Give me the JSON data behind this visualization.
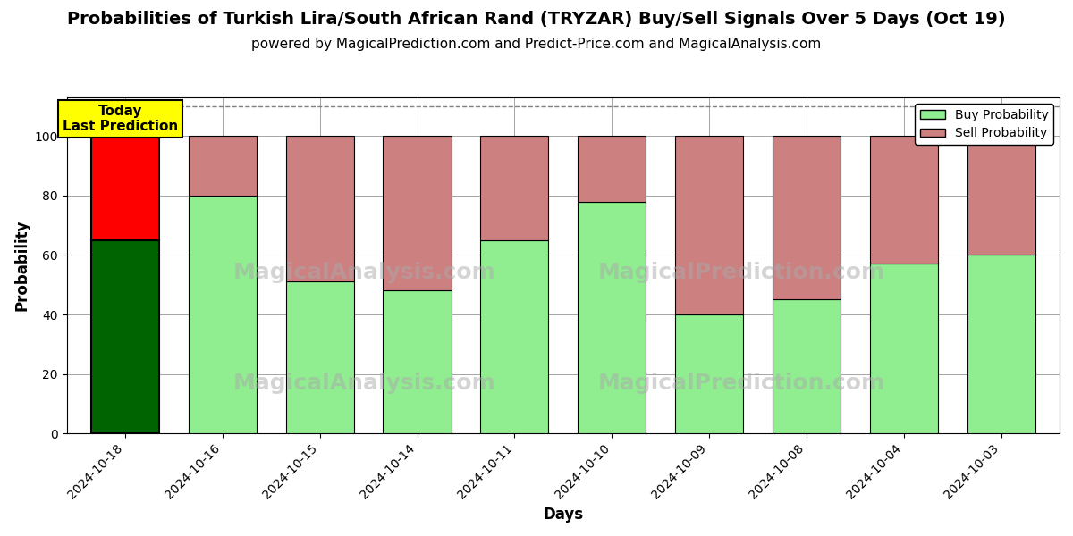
{
  "title": "Probabilities of Turkish Lira/South African Rand (TRYZAR) Buy/Sell Signals Over 5 Days (Oct 19)",
  "subtitle": "powered by MagicalPrediction.com and Predict-Price.com and MagicalAnalysis.com",
  "xlabel": "Days",
  "ylabel": "Probability",
  "categories": [
    "2024-10-18",
    "2024-10-16",
    "2024-10-15",
    "2024-10-14",
    "2024-10-11",
    "2024-10-10",
    "2024-10-09",
    "2024-10-08",
    "2024-10-04",
    "2024-10-03"
  ],
  "buy_values": [
    65,
    80,
    51,
    48,
    65,
    78,
    40,
    45,
    57,
    60
  ],
  "sell_values": [
    35,
    20,
    49,
    52,
    35,
    22,
    60,
    55,
    43,
    40
  ],
  "today_bar_index": 0,
  "today_buy_color": "#006400",
  "today_sell_color": "#ff0000",
  "normal_buy_color": "#90EE90",
  "normal_sell_color": "#cd8080",
  "today_label_bg": "#ffff00",
  "today_label_text": "Today\nLast Prediction",
  "ylim": [
    0,
    113
  ],
  "yticks": [
    0,
    20,
    40,
    60,
    80,
    100
  ],
  "dashed_line_y": 110,
  "legend_buy_label": "Buy Probability",
  "legend_sell_label": "Sell Probability",
  "bar_width": 0.7,
  "title_fontsize": 14,
  "subtitle_fontsize": 11,
  "axis_label_fontsize": 12,
  "tick_fontsize": 10
}
